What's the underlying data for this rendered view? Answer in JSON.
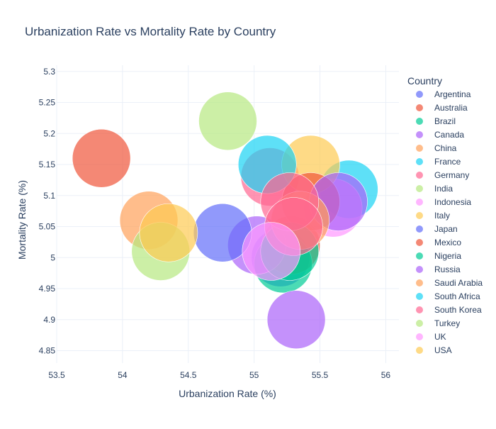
{
  "chart_data": {
    "type": "scatter",
    "title": "Urbanization Rate vs Mortality Rate by Country",
    "xlabel": "Urbanization Rate (%)",
    "ylabel": "Mortality Rate (%)",
    "xlim": [
      53.5,
      56.1
    ],
    "ylim": [
      4.83,
      5.31
    ],
    "x_ticks": [
      53.5,
      54,
      54.5,
      55,
      55.5,
      56
    ],
    "y_ticks": [
      4.85,
      4.9,
      4.95,
      5,
      5.05,
      5.1,
      5.15,
      5.2,
      5.25,
      5.3
    ],
    "grid": true,
    "legend": {
      "title": "Country",
      "placement": "right"
    },
    "series": [
      {
        "name": "Argentina",
        "color": "#636efa",
        "points": [
          {
            "x": 55.2,
            "y": 5.0
          }
        ]
      },
      {
        "name": "Australia",
        "color": "#EF553B",
        "points": [
          {
            "x": 55.28,
            "y": 5.02
          }
        ]
      },
      {
        "name": "Brazil",
        "color": "#00cc96",
        "points": [
          {
            "x": 55.22,
            "y": 4.99
          }
        ]
      },
      {
        "name": "Canada",
        "color": "#ab63fa",
        "points": [
          {
            "x": 55.02,
            "y": 5.02
          }
        ]
      },
      {
        "name": "China",
        "color": "#FFA15A",
        "points": [
          {
            "x": 54.2,
            "y": 5.06
          }
        ]
      },
      {
        "name": "France",
        "color": "#19d3f3",
        "points": [
          {
            "x": 55.72,
            "y": 5.11
          }
        ]
      },
      {
        "name": "Germany",
        "color": "#FF6692",
        "points": [
          {
            "x": 55.12,
            "y": 5.13
          }
        ]
      },
      {
        "name": "India",
        "color": "#B6E880",
        "points": [
          {
            "x": 54.8,
            "y": 5.22
          }
        ]
      },
      {
        "name": "Indonesia",
        "color": "#FF97FF",
        "points": [
          {
            "x": 55.6,
            "y": 5.08
          }
        ]
      },
      {
        "name": "Italy",
        "color": "#FECB52",
        "points": [
          {
            "x": 55.43,
            "y": 5.15
          }
        ]
      },
      {
        "name": "Japan",
        "color": "#636efa",
        "points": [
          {
            "x": 54.76,
            "y": 5.04
          }
        ]
      },
      {
        "name": "Mexico",
        "color": "#EF553B",
        "points": [
          {
            "x": 53.84,
            "y": 5.16
          },
          {
            "x": 55.43,
            "y": 5.09
          }
        ]
      },
      {
        "name": "Nigeria",
        "color": "#00cc96",
        "points": [
          {
            "x": 55.27,
            "y": 5.01
          }
        ]
      },
      {
        "name": "Russia",
        "color": "#ab63fa",
        "points": [
          {
            "x": 55.32,
            "y": 4.9
          },
          {
            "x": 55.64,
            "y": 5.09
          }
        ]
      },
      {
        "name": "Saudi Arabia",
        "color": "#FFA15A",
        "points": [
          {
            "x": 55.35,
            "y": 5.06
          }
        ]
      },
      {
        "name": "South Africa",
        "color": "#19d3f3",
        "points": [
          {
            "x": 55.1,
            "y": 5.15
          }
        ]
      },
      {
        "name": "South Korea",
        "color": "#FF6692",
        "points": [
          {
            "x": 55.27,
            "y": 5.09
          },
          {
            "x": 55.3,
            "y": 5.05
          }
        ]
      },
      {
        "name": "Turkey",
        "color": "#B6E880",
        "points": [
          {
            "x": 54.29,
            "y": 5.01
          }
        ]
      },
      {
        "name": "UK",
        "color": "#FF97FF",
        "points": [
          {
            "x": 55.13,
            "y": 5.01
          }
        ]
      },
      {
        "name": "USA",
        "color": "#FECB52",
        "points": [
          {
            "x": 54.35,
            "y": 5.04
          }
        ]
      }
    ]
  }
}
